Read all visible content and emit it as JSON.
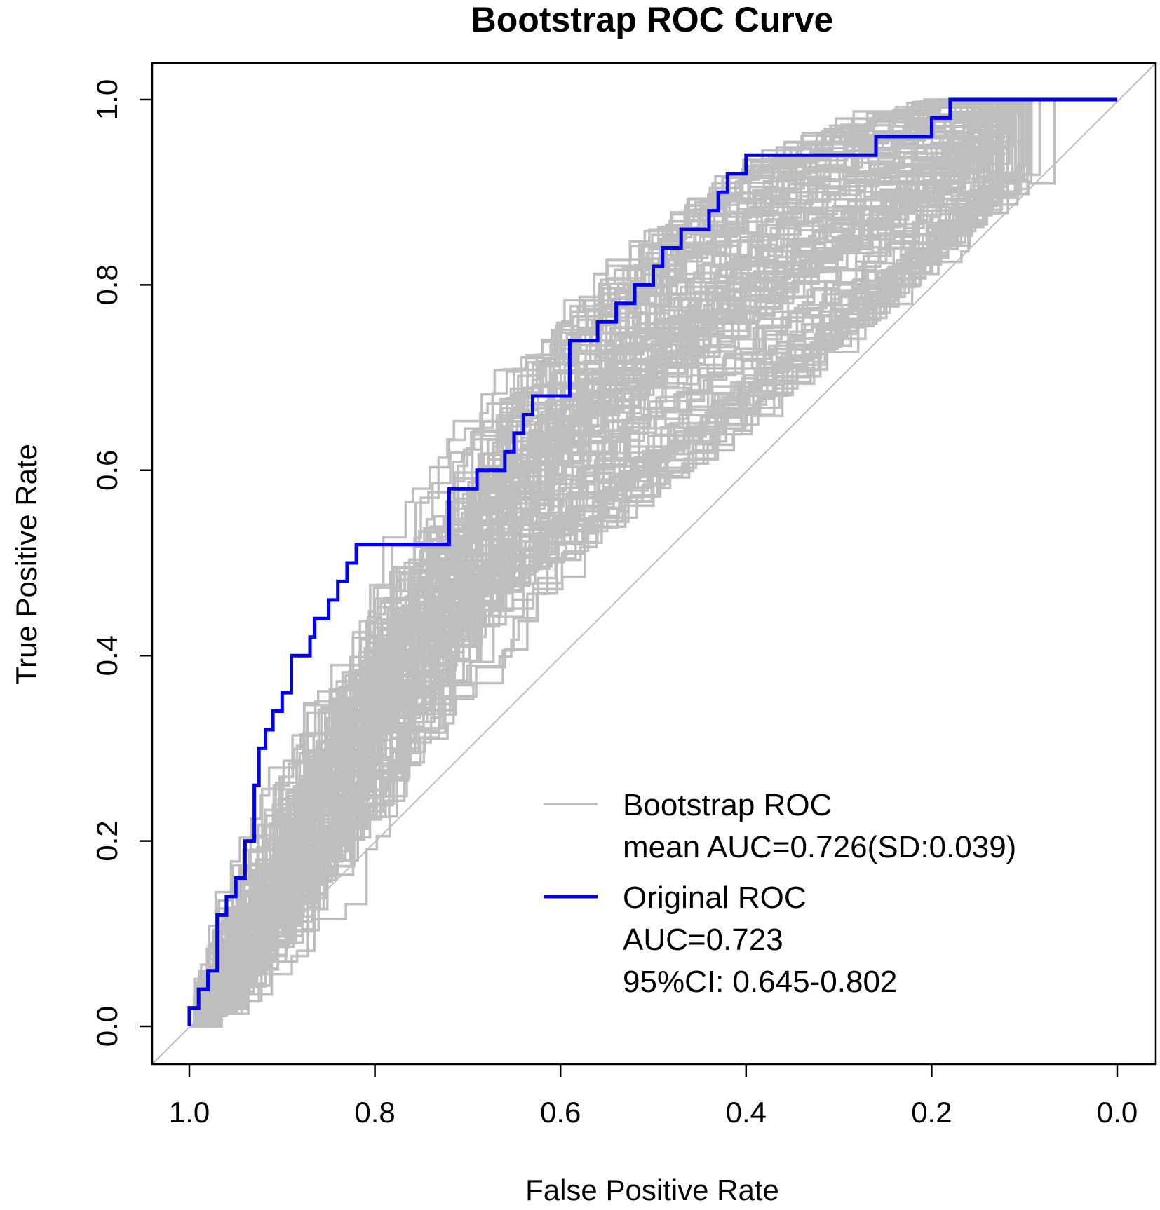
{
  "chart_data": {
    "type": "line",
    "title": "Bootstrap ROC Curve",
    "xlabel": "False Positive Rate",
    "ylabel": "True Positive Rate",
    "x_reversed": true,
    "xlim": [
      1.0,
      0.0
    ],
    "ylim": [
      0.0,
      1.0
    ],
    "x_ticks": [
      1.0,
      0.8,
      0.6,
      0.4,
      0.2,
      0.0
    ],
    "x_tick_labels": [
      "1.0",
      "0.8",
      "0.6",
      "0.4",
      "0.2",
      "0.0"
    ],
    "y_ticks": [
      0.0,
      0.2,
      0.4,
      0.6,
      0.8,
      1.0
    ],
    "y_tick_labels": [
      "0.0",
      "0.2",
      "0.4",
      "0.6",
      "0.8",
      "1.0"
    ],
    "grid": false,
    "legend_position": "bottom-right",
    "colors": {
      "bootstrap": "#bebebe",
      "original": "#0000ee",
      "diagonal": "#bebebe"
    },
    "legend": [
      {
        "series": "bootstrap",
        "lines": [
          "Bootstrap ROC",
          "mean AUC=0.726(SD:0.039)"
        ]
      },
      {
        "series": "original",
        "lines": [
          "Original ROC",
          "AUC=0.723",
          "95%CI: 0.645-0.802"
        ]
      }
    ],
    "series": [
      {
        "key": "original",
        "x": [
          1.0,
          1.0,
          0.99,
          0.99,
          0.98,
          0.98,
          0.97,
          0.97,
          0.96,
          0.96,
          0.95,
          0.95,
          0.94,
          0.94,
          0.93,
          0.93,
          0.925,
          0.925,
          0.918,
          0.918,
          0.91,
          0.91,
          0.9,
          0.9,
          0.89,
          0.89,
          0.87,
          0.87,
          0.865,
          0.865,
          0.85,
          0.85,
          0.84,
          0.84,
          0.83,
          0.83,
          0.82,
          0.82,
          0.8,
          0.8,
          0.79,
          0.79,
          0.72,
          0.72,
          0.69,
          0.69,
          0.66,
          0.66,
          0.65,
          0.65,
          0.64,
          0.64,
          0.63,
          0.63,
          0.62,
          0.62,
          0.59,
          0.59,
          0.56,
          0.56,
          0.54,
          0.54,
          0.52,
          0.52,
          0.5,
          0.5,
          0.49,
          0.49,
          0.47,
          0.47,
          0.44,
          0.44,
          0.43,
          0.43,
          0.42,
          0.42,
          0.4,
          0.4,
          0.32,
          0.32,
          0.26,
          0.26,
          0.2,
          0.2,
          0.18,
          0.18,
          0.0
        ],
        "y": [
          0.0,
          0.02,
          0.02,
          0.04,
          0.04,
          0.06,
          0.06,
          0.12,
          0.12,
          0.14,
          0.14,
          0.16,
          0.16,
          0.2,
          0.2,
          0.26,
          0.26,
          0.3,
          0.3,
          0.32,
          0.32,
          0.34,
          0.34,
          0.36,
          0.36,
          0.4,
          0.4,
          0.42,
          0.42,
          0.44,
          0.44,
          0.46,
          0.46,
          0.48,
          0.48,
          0.5,
          0.5,
          0.52,
          0.52,
          0.52,
          0.52,
          0.52,
          0.52,
          0.58,
          0.58,
          0.6,
          0.6,
          0.62,
          0.62,
          0.64,
          0.64,
          0.66,
          0.66,
          0.68,
          0.68,
          0.68,
          0.68,
          0.74,
          0.74,
          0.76,
          0.76,
          0.78,
          0.78,
          0.8,
          0.8,
          0.82,
          0.82,
          0.84,
          0.84,
          0.86,
          0.86,
          0.88,
          0.88,
          0.9,
          0.9,
          0.92,
          0.92,
          0.94,
          0.94,
          0.94,
          0.94,
          0.96,
          0.96,
          0.98,
          0.98,
          1.0,
          1.0
        ]
      }
    ]
  }
}
